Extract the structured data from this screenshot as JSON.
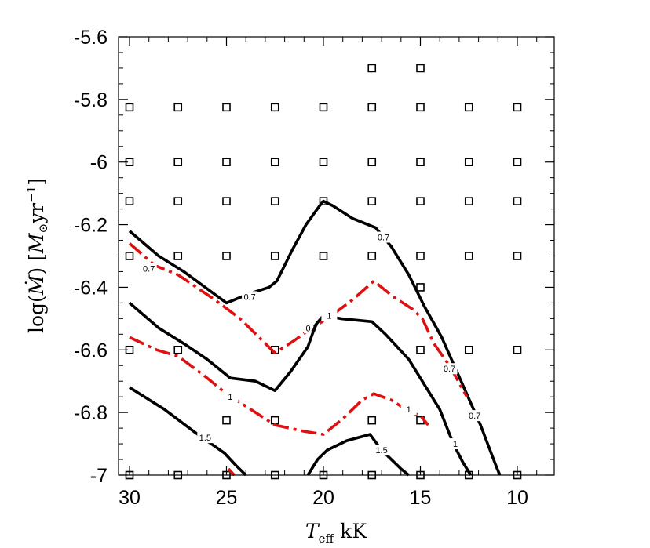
{
  "chart_data": {
    "type": "line",
    "xlabel": "T_eff kK",
    "ylabel": "log(Ṁ) [M⊙yr⁻¹]",
    "xlim": [
      31.0,
      7.8
    ],
    "ylim": [
      -7.0,
      -5.6
    ],
    "x_reversed": true,
    "x_ticks": [
      "30",
      "25",
      "20",
      "15",
      "10"
    ],
    "x_tick_values": [
      30,
      25,
      20,
      15,
      10
    ],
    "y_ticks": [
      "-5.6",
      "-5.8",
      "-6",
      "-6.2",
      "-6.4",
      "-6.6",
      "-6.8",
      "-7"
    ],
    "y_tick_values": [
      -5.6,
      -5.8,
      -6.0,
      -6.2,
      -6.4,
      -6.6,
      -6.8,
      -7.0
    ],
    "grid": false,
    "grid_points": [
      [
        17.5,
        -5.7
      ],
      [
        15.0,
        -5.7
      ],
      [
        30,
        -5.825
      ],
      [
        27.5,
        -5.825
      ],
      [
        25,
        -5.825
      ],
      [
        22.5,
        -5.825
      ],
      [
        20,
        -5.825
      ],
      [
        17.5,
        -5.825
      ],
      [
        15,
        -5.825
      ],
      [
        12.5,
        -5.825
      ],
      [
        10,
        -5.825
      ],
      [
        30,
        -6.0
      ],
      [
        27.5,
        -6.0
      ],
      [
        25,
        -6.0
      ],
      [
        22.5,
        -6.0
      ],
      [
        20,
        -6.0
      ],
      [
        17.5,
        -6.0
      ],
      [
        15,
        -6.0
      ],
      [
        12.5,
        -6.0
      ],
      [
        10,
        -6.0
      ],
      [
        30,
        -6.125
      ],
      [
        27.5,
        -6.125
      ],
      [
        25,
        -6.125
      ],
      [
        22.5,
        -6.125
      ],
      [
        20,
        -6.125
      ],
      [
        17.5,
        -6.125
      ],
      [
        15,
        -6.125
      ],
      [
        12.5,
        -6.125
      ],
      [
        10,
        -6.125
      ],
      [
        30,
        -6.3
      ],
      [
        27.5,
        -6.3
      ],
      [
        25,
        -6.3
      ],
      [
        22.5,
        -6.3
      ],
      [
        20,
        -6.3
      ],
      [
        17.5,
        -6.3
      ],
      [
        15,
        -6.3
      ],
      [
        12.5,
        -6.3
      ],
      [
        10,
        -6.3
      ],
      [
        15,
        -6.4
      ],
      [
        30,
        -6.6
      ],
      [
        27.5,
        -6.6
      ],
      [
        22.5,
        -6.6
      ],
      [
        15,
        -6.6
      ],
      [
        12.5,
        -6.6
      ],
      [
        10,
        -6.6
      ],
      [
        25,
        -6.825
      ],
      [
        22.5,
        -6.825
      ],
      [
        17.5,
        -6.825
      ],
      [
        15,
        -6.825
      ],
      [
        30,
        -7.0
      ],
      [
        27.5,
        -7.0
      ],
      [
        25,
        -7.0
      ],
      [
        22.5,
        -7.0
      ],
      [
        20,
        -7.0
      ],
      [
        17.5,
        -7.0
      ],
      [
        15,
        -7.0
      ],
      [
        12.5,
        -7.0
      ],
      [
        10,
        -7.0
      ]
    ],
    "series": [
      {
        "label": "0.7",
        "color": "#000000",
        "dash": "solid",
        "points": [
          [
            30.0,
            -6.22
          ],
          [
            28.5,
            -6.3
          ],
          [
            27.2,
            -6.35
          ],
          [
            25.0,
            -6.45
          ],
          [
            23.8,
            -6.42
          ],
          [
            22.8,
            -6.4
          ],
          [
            22.4,
            -6.38
          ],
          [
            21.6,
            -6.28
          ],
          [
            20.9,
            -6.2
          ],
          [
            20.2,
            -6.14
          ],
          [
            20.0,
            -6.125
          ],
          [
            19.5,
            -6.14
          ],
          [
            18.5,
            -6.18
          ],
          [
            17.3,
            -6.21
          ],
          [
            16.5,
            -6.27
          ],
          [
            15.6,
            -6.36
          ],
          [
            14.8,
            -6.46
          ],
          [
            13.9,
            -6.56
          ],
          [
            12.9,
            -6.7
          ],
          [
            11.9,
            -6.84
          ],
          [
            11.1,
            -6.97
          ],
          [
            10.9,
            -7.0
          ]
        ],
        "label_positions": [
          [
            16.9,
            -6.24
          ],
          [
            23.8,
            -6.43
          ],
          [
            12.2,
            -6.81
          ]
        ]
      },
      {
        "label": "0.7",
        "color": "#dd1111",
        "dash": "dashdot",
        "points": [
          [
            30.0,
            -6.26
          ],
          [
            28.7,
            -6.33
          ],
          [
            27.5,
            -6.36
          ],
          [
            25.6,
            -6.44
          ],
          [
            24.3,
            -6.5
          ],
          [
            22.5,
            -6.61
          ],
          [
            21.5,
            -6.57
          ],
          [
            20.6,
            -6.53
          ],
          [
            19.8,
            -6.5
          ],
          [
            18.5,
            -6.44
          ],
          [
            17.4,
            -6.38
          ],
          [
            16.4,
            -6.43
          ],
          [
            15.4,
            -6.47
          ],
          [
            14.9,
            -6.5
          ],
          [
            14.3,
            -6.58
          ],
          [
            13.5,
            -6.65
          ],
          [
            12.6,
            -6.75
          ]
        ],
        "label_positions": [
          [
            29.0,
            -6.34
          ],
          [
            20.6,
            -6.53
          ],
          [
            13.5,
            -6.66
          ]
        ]
      },
      {
        "label": "1",
        "color": "#000000",
        "dash": "solid",
        "points": [
          [
            30.0,
            -6.45
          ],
          [
            28.5,
            -6.53
          ],
          [
            27.2,
            -6.58
          ],
          [
            26.0,
            -6.63
          ],
          [
            24.8,
            -6.69
          ],
          [
            23.5,
            -6.7
          ],
          [
            22.5,
            -6.73
          ],
          [
            21.7,
            -6.67
          ],
          [
            20.8,
            -6.59
          ],
          [
            20.4,
            -6.52
          ],
          [
            20.0,
            -6.49
          ],
          [
            19.1,
            -6.5
          ],
          [
            17.5,
            -6.51
          ],
          [
            16.8,
            -6.55
          ],
          [
            15.6,
            -6.63
          ],
          [
            14.8,
            -6.71
          ],
          [
            14.0,
            -6.79
          ],
          [
            13.3,
            -6.9
          ],
          [
            12.8,
            -6.96
          ],
          [
            12.4,
            -7.0
          ]
        ],
        "label_positions": [
          [
            19.7,
            -6.49
          ],
          [
            13.2,
            -6.9
          ]
        ]
      },
      {
        "label": "1",
        "color": "#dd1111",
        "dash": "dashdot",
        "points": [
          [
            30.0,
            -6.56
          ],
          [
            28.6,
            -6.6
          ],
          [
            27.5,
            -6.62
          ],
          [
            26.2,
            -6.68
          ],
          [
            25.0,
            -6.74
          ],
          [
            24.0,
            -6.78
          ],
          [
            23.0,
            -6.82
          ],
          [
            22.5,
            -6.84
          ],
          [
            21.0,
            -6.86
          ],
          [
            20.0,
            -6.87
          ],
          [
            19.0,
            -6.82
          ],
          [
            18.0,
            -6.76
          ],
          [
            17.4,
            -6.74
          ],
          [
            16.5,
            -6.76
          ],
          [
            15.5,
            -6.8
          ],
          [
            15.0,
            -6.81
          ],
          [
            14.6,
            -6.84
          ]
        ],
        "label_positions": [
          [
            24.8,
            -6.75
          ],
          [
            15.6,
            -6.79
          ]
        ]
      },
      {
        "label": "1.5",
        "color": "#000000",
        "dash": "solid",
        "points": [
          [
            30.0,
            -6.72
          ],
          [
            28.2,
            -6.79
          ],
          [
            26.7,
            -6.86
          ],
          [
            25.1,
            -6.93
          ],
          [
            24.5,
            -6.97
          ],
          [
            24.0,
            -7.0
          ]
        ],
        "label_positions": [
          [
            26.1,
            -6.88
          ]
        ]
      },
      {
        "label": "1.5",
        "color": "#000000",
        "dash": "solid",
        "points": [
          [
            20.8,
            -7.0
          ],
          [
            20.3,
            -6.95
          ],
          [
            19.8,
            -6.92
          ],
          [
            18.8,
            -6.89
          ],
          [
            17.6,
            -6.87
          ],
          [
            17.0,
            -6.92
          ],
          [
            16.0,
            -6.98
          ],
          [
            15.6,
            -7.0
          ]
        ],
        "label_positions": [
          [
            17.0,
            -6.92
          ]
        ]
      },
      {
        "label": "",
        "color": "#dd1111",
        "dash": "dashdot",
        "points": [
          [
            24.9,
            -6.98
          ],
          [
            24.6,
            -7.0
          ]
        ],
        "label_positions": []
      }
    ]
  }
}
